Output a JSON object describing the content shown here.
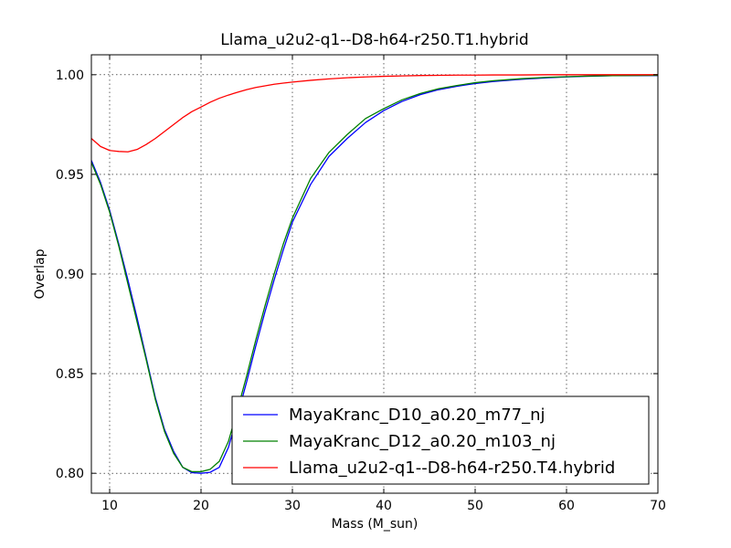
{
  "chart_data": {
    "type": "line",
    "title": "Llama_u2u2-q1--D8-h64-r250.T1.hybrid",
    "xlabel": "Mass (M_sun)",
    "ylabel": "Overlap",
    "xlim": [
      8,
      70
    ],
    "ylim": [
      0.79,
      1.01
    ],
    "x_ticks": [
      10,
      20,
      30,
      40,
      50,
      60,
      70
    ],
    "y_ticks": [
      0.8,
      0.85,
      0.9,
      0.95,
      1.0
    ],
    "x_tick_labels": [
      "10",
      "20",
      "30",
      "40",
      "50",
      "60",
      "70"
    ],
    "y_tick_labels": [
      "0.80",
      "0.85",
      "0.90",
      "0.95",
      "1.00"
    ],
    "grid": true,
    "legend_position": "bottom-right",
    "x": [
      8,
      9,
      10,
      11,
      12,
      13,
      14,
      15,
      16,
      17,
      18,
      19,
      20,
      21,
      22,
      23,
      24,
      25,
      26,
      27,
      28,
      29,
      30,
      32,
      34,
      36,
      38,
      40,
      42,
      44,
      46,
      48,
      50,
      52,
      55,
      58,
      60,
      62,
      65,
      70
    ],
    "series": [
      {
        "name": "MayaKranc_D10_a0.20_m77_nj",
        "color": "#0000ff",
        "values": [
          0.957,
          0.946,
          0.932,
          0.915,
          0.897,
          0.878,
          0.858,
          0.838,
          0.822,
          0.811,
          0.803,
          0.8003,
          0.8,
          0.8005,
          0.803,
          0.813,
          0.829,
          0.846,
          0.864,
          0.881,
          0.897,
          0.912,
          0.926,
          0.945,
          0.959,
          0.968,
          0.976,
          0.982,
          0.9866,
          0.99,
          0.9925,
          0.9942,
          0.9956,
          0.9966,
          0.9977,
          0.9985,
          0.9989,
          0.9992,
          0.9995,
          0.9996
        ]
      },
      {
        "name": "MayaKranc_D12_a0.20_m103_nj",
        "color": "#008000",
        "values": [
          0.956,
          0.945,
          0.931,
          0.914,
          0.895,
          0.876,
          0.857,
          0.837,
          0.821,
          0.81,
          0.803,
          0.8008,
          0.8008,
          0.802,
          0.806,
          0.816,
          0.832,
          0.849,
          0.867,
          0.884,
          0.9,
          0.915,
          0.928,
          0.948,
          0.961,
          0.97,
          0.978,
          0.983,
          0.9874,
          0.9906,
          0.993,
          0.9946,
          0.996,
          0.997,
          0.998,
          0.9987,
          0.999,
          0.9993,
          0.9995,
          0.9997
        ]
      },
      {
        "name": "Llama_u2u2-q1--D8-h64-r250.T4.hybrid",
        "color": "#ff0000",
        "values": [
          0.968,
          0.964,
          0.962,
          0.9615,
          0.9613,
          0.9625,
          0.965,
          0.968,
          0.9715,
          0.975,
          0.9785,
          0.9815,
          0.9838,
          0.9862,
          0.9882,
          0.9898,
          0.9912,
          0.9925,
          0.9936,
          0.9944,
          0.9952,
          0.9958,
          0.9963,
          0.9972,
          0.9979,
          0.9985,
          0.9989,
          0.9992,
          0.9994,
          0.9996,
          0.9997,
          0.9998,
          0.9998,
          0.9999,
          0.9999,
          1.0,
          1.0,
          1.0,
          1.0,
          1.0
        ]
      }
    ]
  }
}
